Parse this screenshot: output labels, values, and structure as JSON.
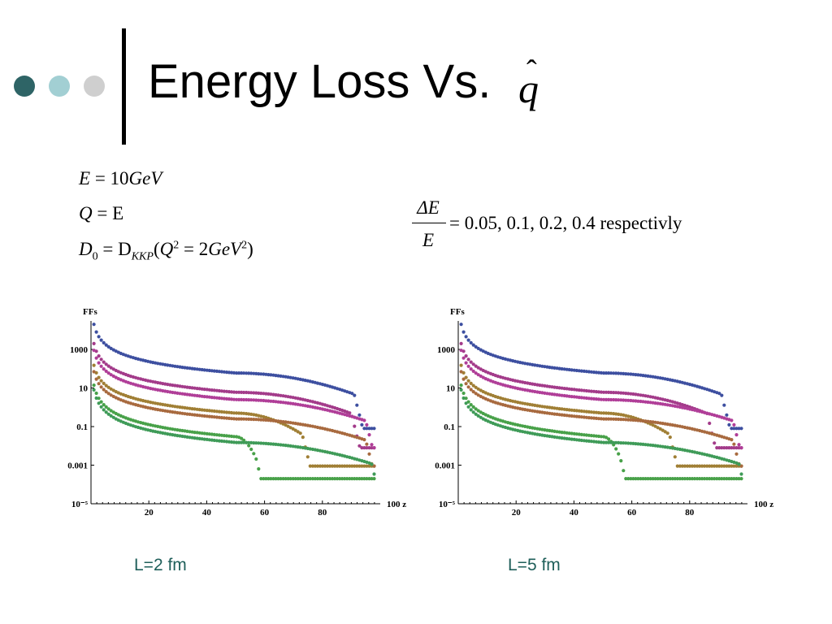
{
  "slide": {
    "title": "Energy Loss Vs.",
    "title_symbol": "q̂",
    "equations": {
      "e_lhs": "E",
      "e_rhs": "= 10",
      "e_unit": "GeV",
      "q_lhs": "Q",
      "q_rhs": "= E",
      "d_lhs": "D",
      "d_lhs_sub": "0",
      "d_mid": "= D",
      "d_sub": "KKP",
      "d_open": "(",
      "d_q": "Q",
      "d_sup1": "2",
      "d_eq": " = 2",
      "d_unit": "GeV",
      "d_sup2": "2",
      "d_close": ")"
    },
    "fraction": {
      "numerator": "ΔE",
      "denominator": "E",
      "rest": "= 0.05,  0.1,  0.2,  0.4 respectivly"
    },
    "bullet_colors": [
      "#2e6466",
      "#a2cfd3",
      "#cfcfcf"
    ]
  },
  "captions": {
    "left": "L=2 fm",
    "right": "L=5 fm"
  },
  "chart_data": [
    {
      "type": "scatter",
      "ylabel": "FFs",
      "xlabel": "100 z",
      "log_y": true,
      "xlim": [
        0,
        100
      ],
      "ylim": [
        1e-05,
        30000
      ],
      "xticks": [
        20,
        40,
        60,
        80
      ],
      "yticks": [
        1000,
        10,
        0.1,
        0.001,
        1e-05
      ],
      "ytick_labels": [
        "1000",
        "10",
        "0.1",
        "0.001",
        "10⁻⁵"
      ],
      "series": [
        {
          "color": "#3d4fa0",
          "y_start": 20000,
          "y_mid": 60,
          "drop_at": 91,
          "floor": 0.08
        },
        {
          "color": "#a33b8a",
          "y_start": 2000,
          "y_mid": 6,
          "drop_at": 90,
          "floor": 0.008
        },
        {
          "color": "#b03e98",
          "y_start": 900,
          "y_mid": 2.5,
          "drop_at": 95,
          "floor": 0.008
        },
        {
          "color": "#a07f35",
          "y_start": 150,
          "y_mid": 0.5,
          "drop_at": 73,
          "floor": 0.0009
        },
        {
          "color": "#a86a3f",
          "y_start": 70,
          "y_mid": 0.25,
          "drop_at": 95,
          "floor": 0.0009
        },
        {
          "color": "#48a149",
          "y_start": 14,
          "y_mid": 0.03,
          "drop_at": 57,
          "floor": 0.0002
        },
        {
          "color": "#3f9b58",
          "y_start": 8,
          "y_mid": 0.015,
          "drop_at": 97,
          "floor": 0.0002
        }
      ]
    },
    {
      "type": "scatter",
      "ylabel": "FFs",
      "xlabel": "100 z",
      "log_y": true,
      "xlim": [
        0,
        100
      ],
      "ylim": [
        1e-05,
        30000
      ],
      "xticks": [
        20,
        40,
        60,
        80
      ],
      "yticks": [
        1000,
        10,
        0.1,
        0.001,
        1e-05
      ],
      "ytick_labels": [
        "1000",
        "10",
        "0.1",
        "0.001",
        "10⁻⁵"
      ],
      "series": [
        {
          "color": "#3d4fa0",
          "y_start": 20000,
          "y_mid": 60,
          "drop_at": 91,
          "floor": 0.08
        },
        {
          "color": "#a33b8a",
          "y_start": 2000,
          "y_mid": 6,
          "drop_at": 86,
          "floor": 0.008
        },
        {
          "color": "#b03e98",
          "y_start": 900,
          "y_mid": 2.5,
          "drop_at": 95,
          "floor": 0.008
        },
        {
          "color": "#a07f35",
          "y_start": 150,
          "y_mid": 0.5,
          "drop_at": 73,
          "floor": 0.0009
        },
        {
          "color": "#a86a3f",
          "y_start": 70,
          "y_mid": 0.25,
          "drop_at": 95,
          "floor": 0.0009
        },
        {
          "color": "#48a149",
          "y_start": 14,
          "y_mid": 0.03,
          "drop_at": 56,
          "floor": 0.0002
        },
        {
          "color": "#3f9b58",
          "y_start": 8,
          "y_mid": 0.015,
          "drop_at": 97,
          "floor": 0.0002
        }
      ]
    }
  ]
}
